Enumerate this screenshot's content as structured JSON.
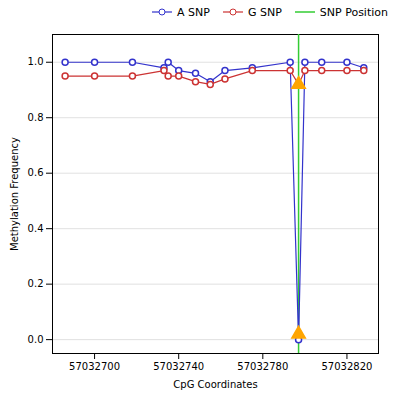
{
  "chart_data": {
    "type": "line",
    "xlabel": "CpG Coordinates",
    "ylabel": "Methylation Frequency",
    "x": [
      57032686,
      57032700,
      57032718,
      57032733,
      57032735,
      57032740,
      57032748,
      57032755,
      57032762,
      57032775,
      57032793,
      57032797,
      57032800,
      57032808,
      57032820,
      57032828
    ],
    "series": [
      {
        "name": "A SNP",
        "color": "#3333cc",
        "marker": "circle",
        "line_style": "solid",
        "values": [
          1.0,
          1.0,
          1.0,
          0.98,
          1.0,
          0.97,
          0.96,
          0.93,
          0.97,
          0.98,
          1.0,
          0.0,
          1.0,
          1.0,
          1.0,
          0.98
        ]
      },
      {
        "name": "G SNP",
        "color": "#cc3333",
        "marker": "circle",
        "line_style": "solid",
        "values": [
          0.95,
          0.95,
          0.95,
          0.97,
          0.95,
          0.95,
          0.93,
          0.92,
          0.94,
          0.97,
          0.97,
          0.92,
          0.97,
          0.97,
          0.97,
          0.97
        ]
      }
    ],
    "vlines": [
      {
        "name": "SNP Position",
        "x": 57032797,
        "color": "#33cc33"
      }
    ],
    "markers": {
      "x": [
        57032797,
        57032797
      ],
      "y": [
        0.92,
        0.02
      ],
      "color": "#FFA500",
      "marker": "triangle"
    },
    "xlim": [
      57032680,
      57032835
    ],
    "ylim": [
      -0.05,
      1.1
    ],
    "xticks": [
      57032700,
      57032740,
      57032780,
      57032820
    ],
    "yticks": [
      {
        "value": 0.0,
        "label": "0.0"
      },
      0.2,
      0.4,
      0.6,
      0.8,
      {
        "value": 1.0,
        "label": "1.0"
      }
    ],
    "grid": true,
    "legend": "center right"
  }
}
